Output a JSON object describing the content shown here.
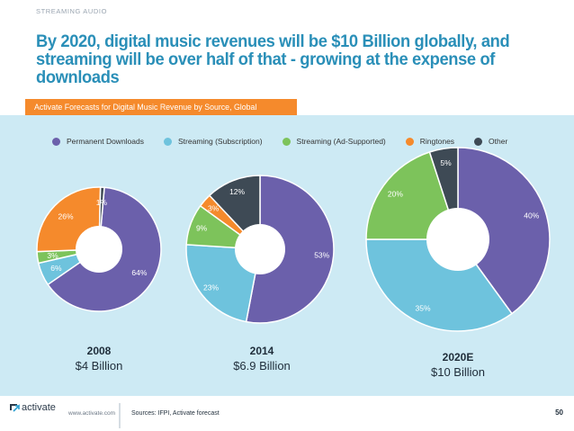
{
  "header": {
    "section_label": "STREAMING AUDIO",
    "headline": "By 2020, digital music revenues will be $10 Billion globally, and streaming will be over half of that - growing at the expense of downloads",
    "subtitle": "Activate Forecasts for Digital Music Revenue by Source, Global"
  },
  "legend": [
    {
      "label": "Permanent Downloads",
      "color": "#6b60ab"
    },
    {
      "label": "Streaming (Subscription)",
      "color": "#6ec3dd"
    },
    {
      "label": "Streaming (Ad-Supported)",
      "color": "#7dc35b"
    },
    {
      "label": "Ringtones",
      "color": "#f58a2c"
    },
    {
      "label": "Other",
      "color": "#3e4a55"
    }
  ],
  "chart_data": [
    {
      "type": "pie",
      "title": "2008",
      "total_label": "$4 Billion",
      "categories": [
        "Permanent Downloads",
        "Streaming (Subscription)",
        "Streaming (Ad-Supported)",
        "Ringtones",
        "Other"
      ],
      "values": [
        64,
        6,
        3,
        26,
        1
      ],
      "labels": [
        "64%",
        "6%",
        "3%",
        "26%",
        "1%"
      ]
    },
    {
      "type": "pie",
      "title": "2014",
      "total_label": "$6.9 Billion",
      "categories": [
        "Permanent Downloads",
        "Streaming (Subscription)",
        "Streaming (Ad-Supported)",
        "Ringtones",
        "Other"
      ],
      "values": [
        53,
        23,
        9,
        3,
        12
      ],
      "labels": [
        "53%",
        "23%",
        "9%",
        "3%",
        "12%"
      ]
    },
    {
      "type": "pie",
      "title": "2020E",
      "total_label": "$10 Billion",
      "categories": [
        "Permanent Downloads",
        "Streaming (Subscription)",
        "Streaming (Ad-Supported)",
        "Other"
      ],
      "values": [
        40,
        35,
        20,
        5
      ],
      "labels": [
        "40%",
        "35%",
        "20%",
        "5%"
      ]
    }
  ],
  "footer": {
    "logo_text": "activate",
    "url": "www.activate.com",
    "sources": "Sources: IFPI, Activate forecast",
    "page_number": "50"
  }
}
